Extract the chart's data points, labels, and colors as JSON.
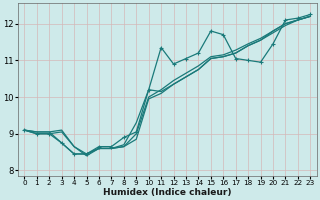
{
  "xlabel": "Humidex (Indice chaleur)",
  "bg_color": "#ceeaea",
  "grid_color": "#b8d8d8",
  "line_color": "#1a7a7a",
  "xlim": [
    -0.5,
    23.5
  ],
  "ylim": [
    7.85,
    12.55
  ],
  "xticks": [
    0,
    1,
    2,
    3,
    4,
    5,
    6,
    7,
    8,
    9,
    10,
    11,
    12,
    13,
    14,
    15,
    16,
    17,
    18,
    19,
    20,
    21,
    22,
    23
  ],
  "yticks": [
    8,
    9,
    10,
    11,
    12
  ],
  "line1_x": [
    0,
    1,
    2,
    3,
    4,
    5,
    6,
    7,
    8,
    9,
    10,
    11,
    12,
    13,
    14,
    15,
    16,
    17,
    18,
    19,
    20,
    21,
    22,
    23
  ],
  "line1_y": [
    9.1,
    9.05,
    9.05,
    8.75,
    8.45,
    8.45,
    8.6,
    8.6,
    8.65,
    8.85,
    9.95,
    10.1,
    10.35,
    10.55,
    10.75,
    11.05,
    11.1,
    11.2,
    11.4,
    11.55,
    11.75,
    11.95,
    12.1,
    12.2
  ],
  "line2_x": [
    0,
    1,
    2,
    3,
    4,
    5,
    6,
    7,
    8,
    9,
    10,
    11,
    12,
    13,
    14,
    15,
    16,
    17,
    18,
    19,
    20,
    21,
    22,
    23
  ],
  "line2_y": [
    9.1,
    9.05,
    9.05,
    9.1,
    8.65,
    8.45,
    8.6,
    8.6,
    8.65,
    9.0,
    10.0,
    10.2,
    10.45,
    10.65,
    10.85,
    11.1,
    11.15,
    11.28,
    11.45,
    11.6,
    11.8,
    12.0,
    12.1,
    12.2
  ],
  "line3_x": [
    0,
    1,
    2,
    3,
    4,
    5,
    6,
    7,
    8,
    9,
    10,
    11,
    12,
    13,
    14,
    15,
    16,
    17,
    18,
    19,
    20,
    21,
    22,
    23
  ],
  "line3_y": [
    9.1,
    9.0,
    9.0,
    9.05,
    8.65,
    8.4,
    8.6,
    8.6,
    8.7,
    9.3,
    10.2,
    10.15,
    10.35,
    10.55,
    10.75,
    11.05,
    11.1,
    11.2,
    11.4,
    11.55,
    11.8,
    12.0,
    12.1,
    12.2
  ],
  "line4_x": [
    0,
    1,
    2,
    3,
    4,
    5,
    6,
    7,
    8,
    9,
    10,
    11,
    12,
    13,
    14,
    15,
    16,
    17,
    18,
    19,
    20,
    21,
    22,
    23
  ],
  "line4_y": [
    9.1,
    9.0,
    9.0,
    8.75,
    8.45,
    8.45,
    8.65,
    8.65,
    8.9,
    9.05,
    10.2,
    11.35,
    10.9,
    11.05,
    11.2,
    11.8,
    11.7,
    11.05,
    11.0,
    10.95,
    11.45,
    12.1,
    12.15,
    12.25
  ]
}
